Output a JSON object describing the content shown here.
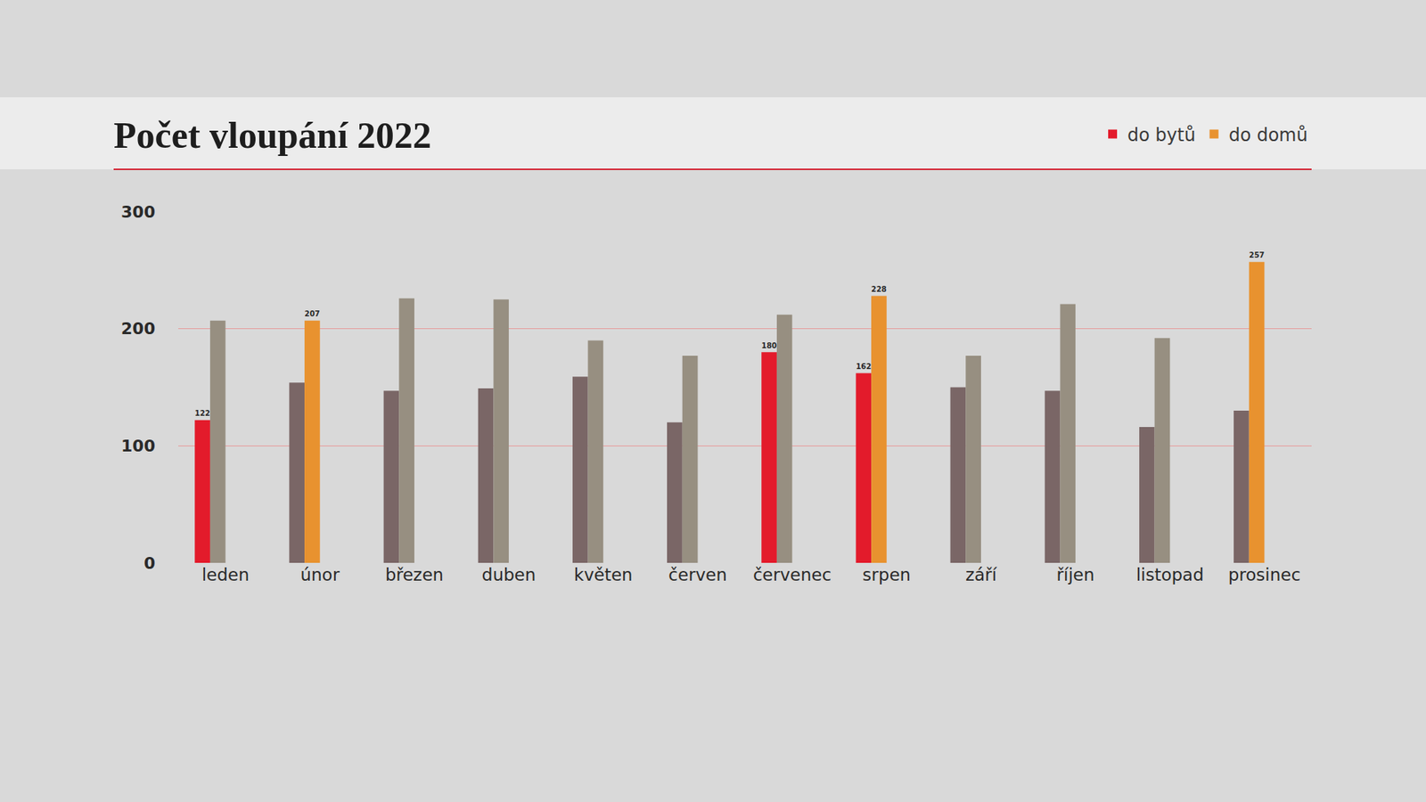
{
  "chart_data": {
    "type": "bar",
    "title": "Počet vloupání 2022",
    "categories": [
      "leden",
      "únor",
      "březen",
      "duben",
      "květen",
      "červen",
      "červenec",
      "srpen",
      "září",
      "říjen",
      "listopad",
      "prosinec"
    ],
    "series": [
      {
        "name": "do bytů",
        "color": "#e31b2b",
        "colors": [
          "#e31b2b",
          "#7a6666",
          "#7a6666",
          "#7a6666",
          "#7a6666",
          "#7a6666",
          "#e31b2b",
          "#e31b2b",
          "#7a6666",
          "#7a6666",
          "#7a6666",
          "#7a6666"
        ],
        "values": [
          122,
          154,
          147,
          149,
          159,
          120,
          180,
          162,
          150,
          147,
          116,
          130
        ],
        "value_labels": [
          "122",
          null,
          null,
          null,
          null,
          null,
          "180",
          "162",
          null,
          null,
          null,
          null
        ]
      },
      {
        "name": "do domů",
        "color": "#e8922f",
        "colors": [
          "#978f81",
          "#e8922f",
          "#978f81",
          "#978f81",
          "#978f81",
          "#978f81",
          "#978f81",
          "#e8922f",
          "#978f81",
          "#978f81",
          "#978f81",
          "#e8922f"
        ],
        "values": [
          207,
          207,
          226,
          225,
          190,
          177,
          212,
          228,
          177,
          221,
          192,
          257
        ],
        "value_labels": [
          null,
          "207",
          null,
          null,
          null,
          null,
          null,
          "228",
          null,
          null,
          null,
          "257"
        ]
      }
    ],
    "ylim": [
      0,
      300
    ],
    "yticks": [
      0,
      100,
      200,
      300
    ],
    "grid": true,
    "legend": "top-right",
    "data_labels": true
  }
}
